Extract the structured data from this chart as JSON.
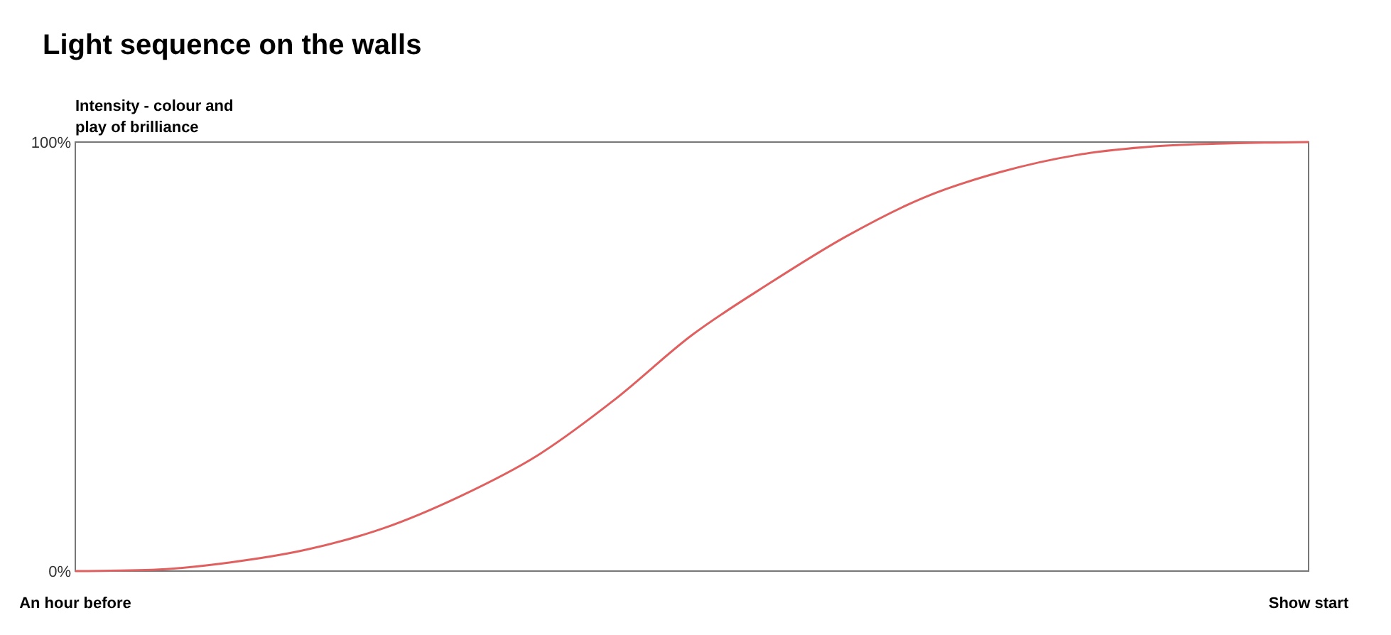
{
  "chart_data": {
    "type": "line",
    "title": "Light sequence on the walls",
    "ylabel": "Intensity - colour and play of brilliance",
    "categories": [
      "An hour before",
      null,
      null,
      null,
      null,
      null,
      null,
      null,
      null,
      null,
      null,
      null,
      null,
      null,
      null,
      null,
      "Show start"
    ],
    "series": [
      {
        "color": "#e06060",
        "values": [
          0,
          0.3,
          2,
          5,
          10,
          17.5,
          27,
          40,
          55,
          67,
          78,
          87,
          93,
          97,
          99,
          99.7,
          100
        ]
      }
    ],
    "ylim": [
      0,
      100
    ],
    "yticks": [
      {
        "value": 0,
        "label": "0%"
      },
      {
        "value": 100,
        "label": "100%"
      }
    ],
    "marker": "none",
    "line_style": "solid"
  }
}
